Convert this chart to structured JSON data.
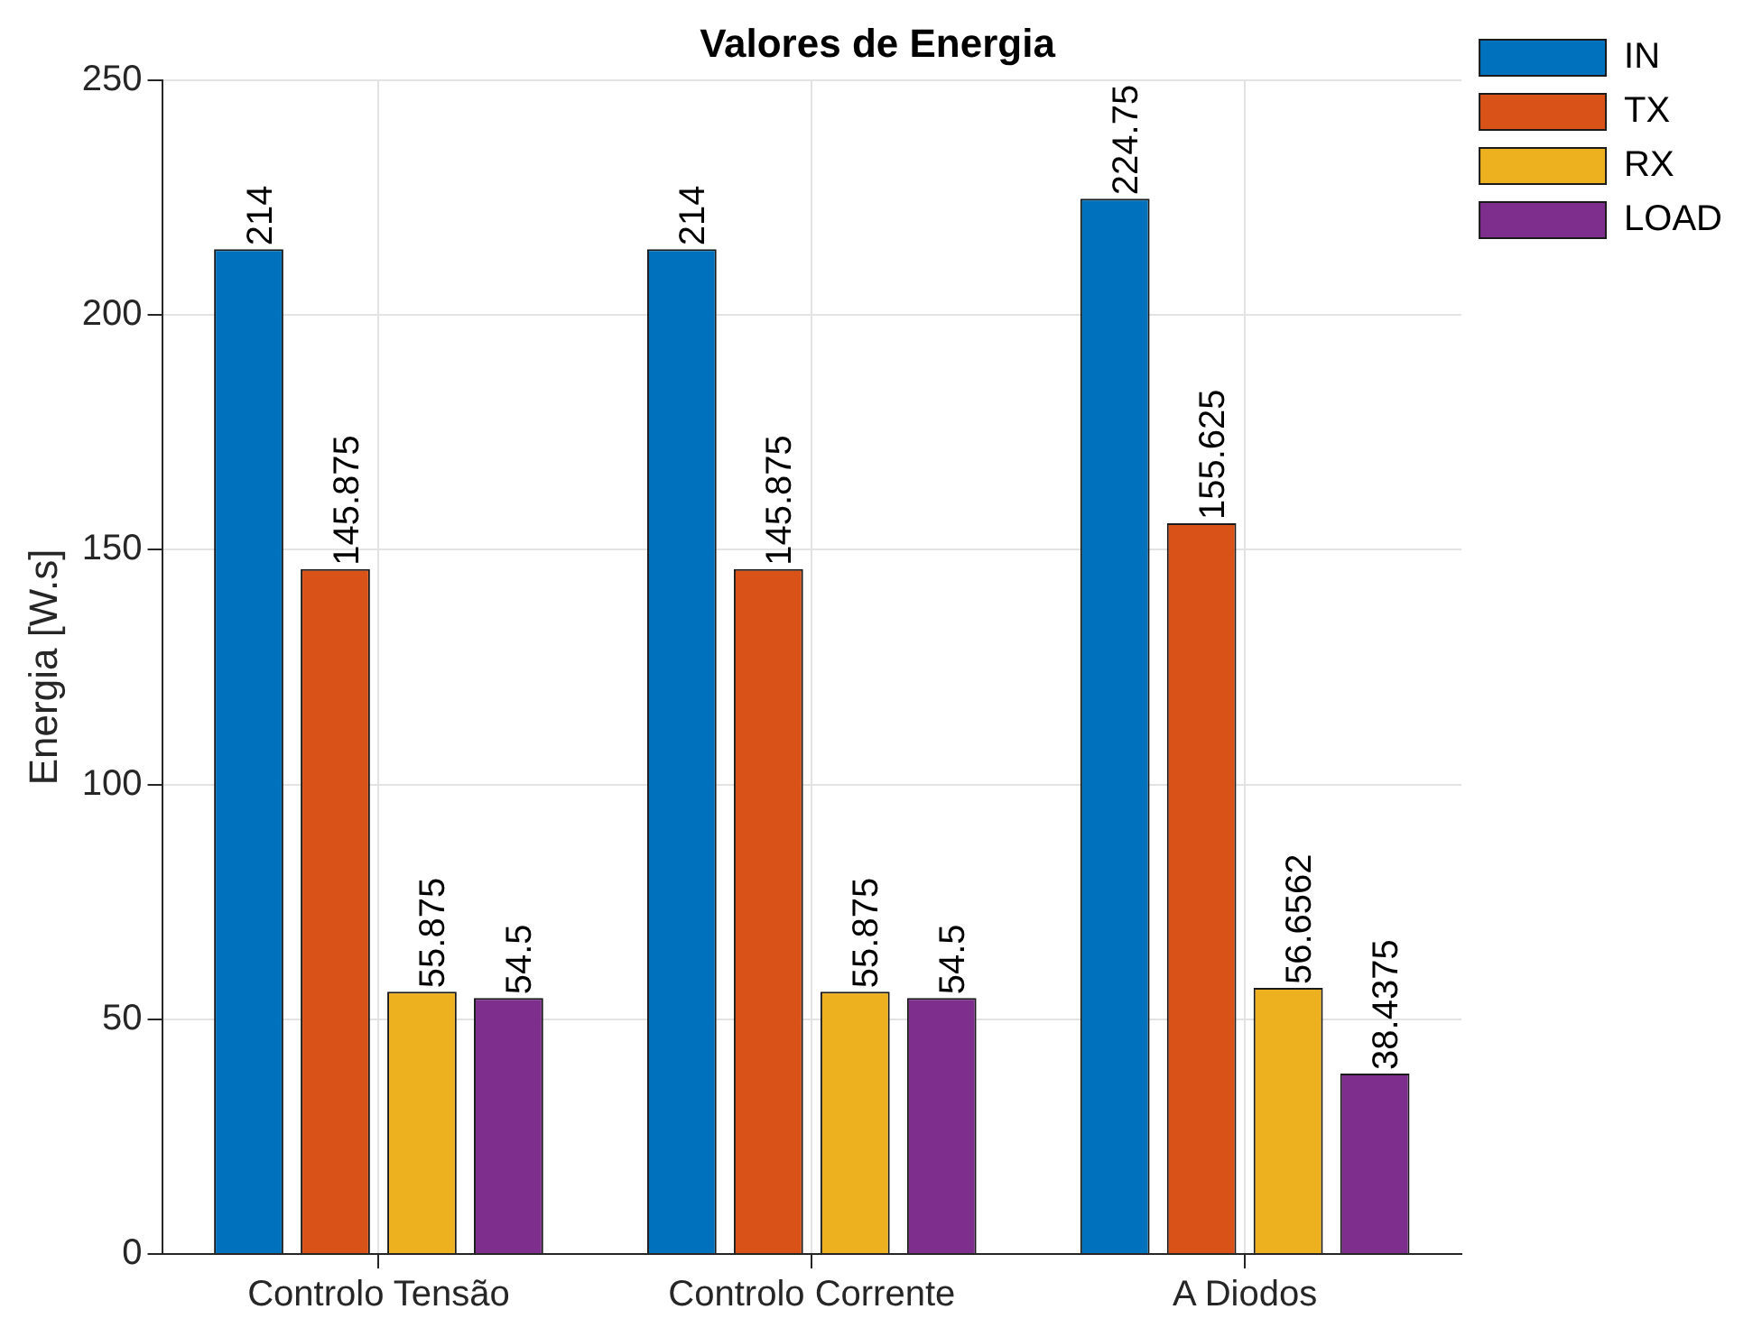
{
  "chart_data": {
    "type": "bar",
    "title": "Valores de Energia",
    "ylabel": "Energia [W.s]",
    "categories": [
      "Controlo Tensão",
      "Controlo Corrente",
      "A Diodos"
    ],
    "series": [
      {
        "name": "IN",
        "color": "#0072bd",
        "values": [
          214,
          214,
          224.75
        ]
      },
      {
        "name": "TX",
        "color": "#d95319",
        "values": [
          145.875,
          145.875,
          155.625
        ]
      },
      {
        "name": "RX",
        "color": "#edb120",
        "values": [
          55.875,
          55.875,
          56.6562
        ]
      },
      {
        "name": "LOAD",
        "color": "#7e2f8e",
        "values": [
          54.5,
          54.5,
          38.4375
        ]
      }
    ],
    "ylim": [
      0,
      250
    ],
    "yticks": [
      0,
      50,
      100,
      150,
      200,
      250
    ],
    "grid": true,
    "legend": "top right",
    "data_labels": true
  }
}
